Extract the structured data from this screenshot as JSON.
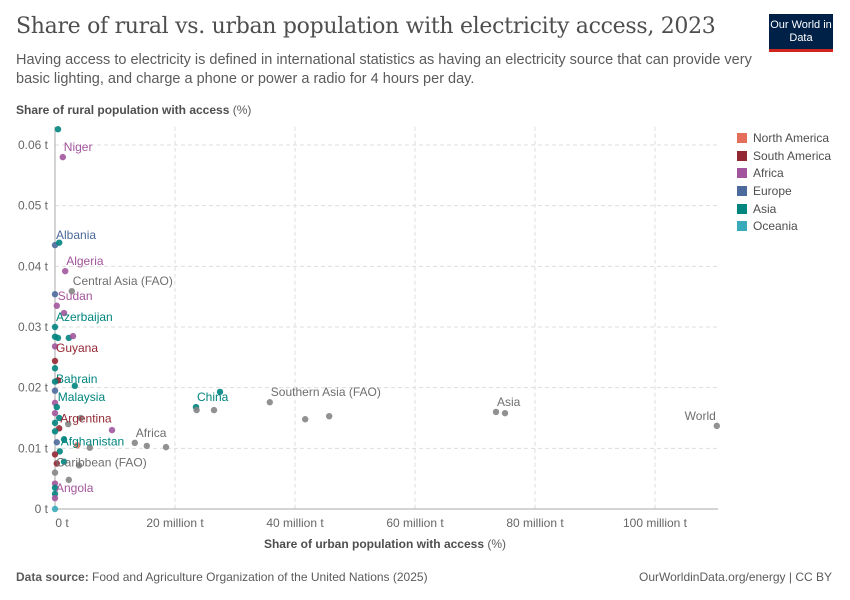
{
  "header": {
    "title": "Share of rural vs. urban population with electricity access, 2023",
    "subtitle": "Having access to electricity is defined in international statistics as having an electricity source that can provide very basic lighting, and charge a phone or power a radio for 4 hours per day.",
    "logo": "Our World in Data"
  },
  "footer": {
    "source_label": "Data source:",
    "source": "Food and Agriculture Organization of the United Nations (2025)",
    "license": "OurWorldinData.org/energy | CC BY"
  },
  "chart_data": {
    "type": "scatter",
    "title": "Share of rural vs. urban population with electricity access, 2023",
    "xlabel_bold": "Share of urban population with access",
    "xlabel_unit": "(%)",
    "ylabel_bold": "Share of rural population with access",
    "ylabel_unit": "(%)",
    "xlim": [
      0,
      112000000
    ],
    "ylim": [
      0,
      0.063
    ],
    "x_ticks": [
      {
        "v": 0,
        "label": "0 t"
      },
      {
        "v": 20000000,
        "label": "20 million t"
      },
      {
        "v": 40000000,
        "label": "40 million t"
      },
      {
        "v": 60000000,
        "label": "60 million t"
      },
      {
        "v": 80000000,
        "label": "80 million t"
      },
      {
        "v": 100000000,
        "label": "100 million t"
      }
    ],
    "y_ticks": [
      {
        "v": 0,
        "label": "0 t"
      },
      {
        "v": 0.01,
        "label": "0.01 t"
      },
      {
        "v": 0.02,
        "label": "0.02 t"
      },
      {
        "v": 0.03,
        "label": "0.03 t"
      },
      {
        "v": 0.04,
        "label": "0.04 t"
      },
      {
        "v": 0.05,
        "label": "0.05 t"
      },
      {
        "v": 0.06,
        "label": "0.06 t"
      }
    ],
    "grid": true,
    "legend_position": "right",
    "legend": [
      {
        "name": "North America",
        "color": "#e56e5a"
      },
      {
        "name": "South America",
        "color": "#932834"
      },
      {
        "name": "Africa",
        "color": "#a2559c"
      },
      {
        "name": "Europe",
        "color": "#4c6a9c"
      },
      {
        "name": "Asia",
        "color": "#00847e"
      },
      {
        "name": "Oceania",
        "color": "#38aaba"
      }
    ],
    "aggregate_color": "#858585",
    "points": [
      {
        "label": "World",
        "region": "agg",
        "x": 110300000,
        "y": 0.0137
      },
      {
        "label": "Asia",
        "region": "agg",
        "x": 73500000,
        "y": 0.016
      },
      {
        "label": "",
        "region": "agg",
        "x": 75000000,
        "y": 0.0158
      },
      {
        "label": "Southern Asia (FAO)",
        "region": "agg",
        "x": 35800000,
        "y": 0.0176
      },
      {
        "label": "",
        "region": "agg",
        "x": 41700000,
        "y": 0.0148
      },
      {
        "label": "",
        "region": "agg",
        "x": 45700000,
        "y": 0.0153
      },
      {
        "label": "China",
        "region": "Asia",
        "x": 23500000,
        "y": 0.0168
      },
      {
        "label": "",
        "region": "Asia",
        "x": 27500000,
        "y": 0.0193
      },
      {
        "label": "",
        "region": "agg",
        "x": 23600000,
        "y": 0.0163
      },
      {
        "label": "",
        "region": "agg",
        "x": 26500000,
        "y": 0.0163
      },
      {
        "label": "Africa",
        "region": "agg",
        "x": 13300000,
        "y": 0.0109
      },
      {
        "label": "",
        "region": "agg",
        "x": 15300000,
        "y": 0.0104
      },
      {
        "label": "",
        "region": "agg",
        "x": 18500000,
        "y": 0.0102
      },
      {
        "label": "Niger",
        "region": "Africa",
        "x": 1300000,
        "y": 0.058
      },
      {
        "label": "",
        "region": "Asia",
        "x": 500000,
        "y": 0.0626
      },
      {
        "label": "Albania",
        "region": "Europe",
        "x": 0,
        "y": 0.0435
      },
      {
        "label": "",
        "region": "Asia",
        "x": 700000,
        "y": 0.0439
      },
      {
        "label": "Algeria",
        "region": "Africa",
        "x": 1700000,
        "y": 0.0392
      },
      {
        "label": "Central Asia (FAO)",
        "region": "agg",
        "x": 2800000,
        "y": 0.0359
      },
      {
        "label": "",
        "region": "Europe",
        "x": 0,
        "y": 0.0354
      },
      {
        "label": "Sudan",
        "region": "Africa",
        "x": 300000,
        "y": 0.0335
      },
      {
        "label": "",
        "region": "Africa",
        "x": 1500000,
        "y": 0.0323
      },
      {
        "label": "Azerbaijan",
        "region": "Asia",
        "x": 0,
        "y": 0.03
      },
      {
        "label": "",
        "region": "Asia",
        "x": 0,
        "y": 0.0284
      },
      {
        "label": "",
        "region": "Asia",
        "x": 500000,
        "y": 0.0282
      },
      {
        "label": "",
        "region": "Asia",
        "x": 2300000,
        "y": 0.0282
      },
      {
        "label": "",
        "region": "Africa",
        "x": 3000000,
        "y": 0.0285
      },
      {
        "label": "",
        "region": "Africa",
        "x": 0,
        "y": 0.0268
      },
      {
        "label": "Guyana",
        "region": "South America",
        "x": 0,
        "y": 0.0244
      },
      {
        "label": "Bahrain",
        "region": "Asia",
        "x": 0,
        "y": 0.0232
      },
      {
        "label": "",
        "region": "South America",
        "x": 500000,
        "y": 0.0212
      },
      {
        "label": "",
        "region": "Asia",
        "x": 0,
        "y": 0.021
      },
      {
        "label": "",
        "region": "Asia",
        "x": 3300000,
        "y": 0.0203
      },
      {
        "label": "",
        "region": "Europe",
        "x": 0,
        "y": 0.0195
      },
      {
        "label": "",
        "region": "Africa",
        "x": 0,
        "y": 0.0175
      },
      {
        "label": "Malaysia",
        "region": "Asia",
        "x": 300000,
        "y": 0.0168
      },
      {
        "label": "",
        "region": "Africa",
        "x": 0,
        "y": 0.0158
      },
      {
        "label": "",
        "region": "agg",
        "x": 4300000,
        "y": 0.015
      },
      {
        "label": "",
        "region": "Asia",
        "x": 700000,
        "y": 0.015
      },
      {
        "label": "",
        "region": "Asia",
        "x": 0,
        "y": 0.0142
      },
      {
        "label": "",
        "region": "agg",
        "x": 2200000,
        "y": 0.014
      },
      {
        "label": "Argentina",
        "region": "South America",
        "x": 700000,
        "y": 0.0133
      },
      {
        "label": "",
        "region": "Asia",
        "x": 0,
        "y": 0.0128
      },
      {
        "label": "",
        "region": "Africa",
        "x": 9500000,
        "y": 0.013
      },
      {
        "label": "",
        "region": "Asia",
        "x": 1500000,
        "y": 0.0115
      },
      {
        "label": "",
        "region": "Europe",
        "x": 300000,
        "y": 0.011
      },
      {
        "label": "",
        "region": "North America",
        "x": 3700000,
        "y": 0.0105
      },
      {
        "label": "",
        "region": "agg",
        "x": 5800000,
        "y": 0.0101
      },
      {
        "label": "Afghanistan",
        "region": "Asia",
        "x": 800000,
        "y": 0.0095
      },
      {
        "label": "",
        "region": "South America",
        "x": 0,
        "y": 0.009
      },
      {
        "label": "",
        "region": "Asia",
        "x": 1500000,
        "y": 0.0078
      },
      {
        "label": "",
        "region": "South America",
        "x": 300000,
        "y": 0.0075
      },
      {
        "label": "",
        "region": "agg",
        "x": 4000000,
        "y": 0.0072
      },
      {
        "label": "Caribbean (FAO)",
        "region": "agg",
        "x": 0,
        "y": 0.006
      },
      {
        "label": "",
        "region": "agg",
        "x": 2300000,
        "y": 0.0048
      },
      {
        "label": "",
        "region": "Africa",
        "x": 0,
        "y": 0.0042
      },
      {
        "label": "",
        "region": "Asia",
        "x": 0,
        "y": 0.0035
      },
      {
        "label": "",
        "region": "Asia",
        "x": 0,
        "y": 0.0025
      },
      {
        "label": "Angola",
        "region": "Africa",
        "x": 0,
        "y": 0.0018
      },
      {
        "label": "",
        "region": "Oceania",
        "x": 0,
        "y": 0.0
      }
    ]
  }
}
